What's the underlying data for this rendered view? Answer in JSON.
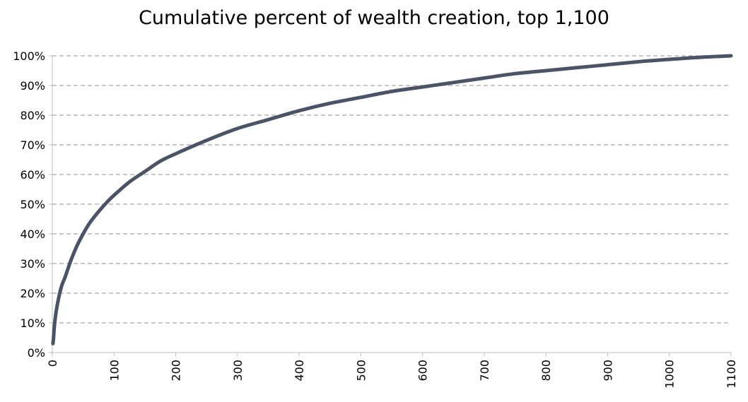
{
  "chart_data": {
    "type": "line",
    "title": "Cumulative percent of wealth creation, top 1,100",
    "xlabel": "",
    "ylabel": "",
    "xlim": [
      0,
      1100
    ],
    "ylim": [
      0,
      100
    ],
    "x_ticks": [
      "0",
      "100",
      "200",
      "300",
      "400",
      "500",
      "600",
      "700",
      "800",
      "900",
      "1000",
      "1100"
    ],
    "y_ticks": [
      "0%",
      "10%",
      "20%",
      "30%",
      "40%",
      "50%",
      "60%",
      "70%",
      "80%",
      "90%",
      "100%"
    ],
    "grid": "horizontal dashed",
    "line_color": "#4a5466",
    "grid_color": "#a6a6a6",
    "series": [
      {
        "x": [
          1,
          2,
          3,
          5,
          8,
          12,
          16,
          20,
          25,
          30,
          40,
          50,
          60,
          75,
          90,
          100,
          125,
          150,
          175,
          200,
          250,
          300,
          350,
          400,
          450,
          500,
          550,
          600,
          650,
          700,
          750,
          800,
          850,
          900,
          950,
          1000,
          1050,
          1100
        ],
        "y": [
          3,
          5,
          8,
          12,
          16,
          20,
          23,
          25,
          28,
          31,
          36,
          40,
          43.5,
          47.5,
          51,
          53,
          57.5,
          61,
          64.5,
          67,
          71.5,
          75.5,
          78.5,
          81.5,
          84,
          86,
          88,
          89.5,
          91,
          92.5,
          94,
          95,
          96,
          97,
          98,
          98.8,
          99.5,
          100
        ]
      }
    ]
  }
}
